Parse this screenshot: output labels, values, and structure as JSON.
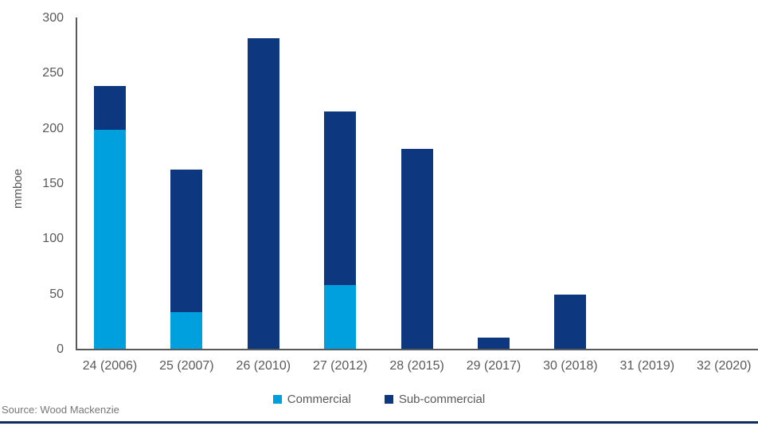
{
  "chart_data": {
    "type": "bar",
    "stacked": true,
    "title": "",
    "xlabel": "",
    "ylabel": "mmboe",
    "categories": [
      "24 (2006)",
      "25 (2007)",
      "26 (2010)",
      "27 (2012)",
      "28 (2015)",
      "29 (2017)",
      "30 (2018)",
      "31 (2019)",
      "32 (2020)"
    ],
    "series": [
      {
        "name": "Commercial",
        "color": "#00A0DE",
        "values": [
          198,
          33,
          0,
          58,
          0,
          0,
          0,
          0,
          0
        ]
      },
      {
        "name": "Sub-commercial",
        "color": "#0D3880",
        "values": [
          40,
          129,
          281,
          157,
          181,
          10,
          49,
          0,
          0
        ]
      }
    ],
    "yticks": [
      0,
      50,
      100,
      150,
      200,
      250,
      300
    ],
    "ylim": [
      0,
      300
    ],
    "grid": false,
    "legend_position": "bottom"
  },
  "source_note": "Source: Wood Mackenzie",
  "colors": {
    "axis_line": "#595959",
    "tick_text": "#595959",
    "label_text": "#595959",
    "legend_text": "#595959",
    "source_text": "#777777",
    "footer_rule": "#0F2C5C"
  }
}
